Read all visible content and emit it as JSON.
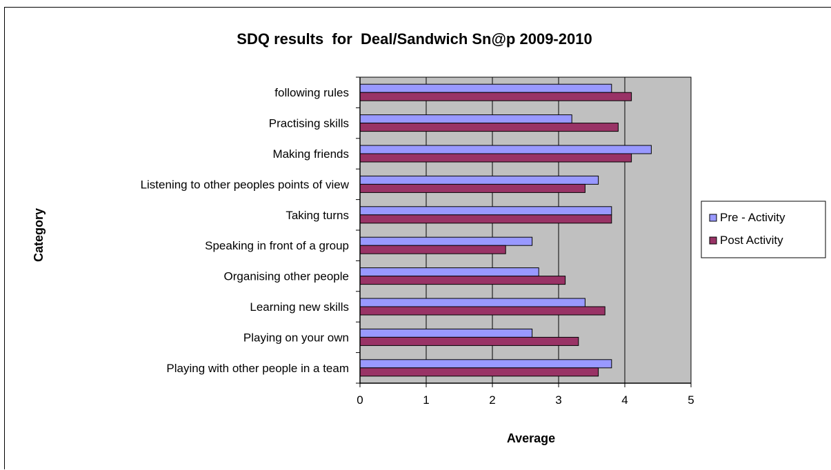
{
  "chart_data": {
    "type": "bar",
    "orientation": "horizontal",
    "title": "SDQ results  for  Deal/Sandwich Sn@p 2009-2010",
    "xlabel": "Average",
    "ylabel": "Category",
    "xlim": [
      0,
      5
    ],
    "xticks": [
      "0",
      "1",
      "2",
      "3",
      "4",
      "5"
    ],
    "grid": true,
    "legend_position": "right",
    "categories": [
      "following rules",
      "Practising skills",
      "Making friends",
      "Listening to other peoples points of view",
      "Taking turns",
      "Speaking in front of a group",
      "Organising other people",
      "Learning new skills",
      "Playing on your own",
      "Playing with other people in a team"
    ],
    "series": [
      {
        "name": "Pre - Activity",
        "color": "#9999ff",
        "values": [
          3.8,
          3.2,
          4.4,
          3.6,
          3.8,
          2.6,
          2.7,
          3.4,
          2.6,
          3.8
        ]
      },
      {
        "name": "Post Activity",
        "color": "#993366",
        "values": [
          4.1,
          3.9,
          4.1,
          3.4,
          3.8,
          2.2,
          3.1,
          3.7,
          3.3,
          3.6
        ]
      }
    ],
    "plot_background": "#c0c0c0"
  }
}
